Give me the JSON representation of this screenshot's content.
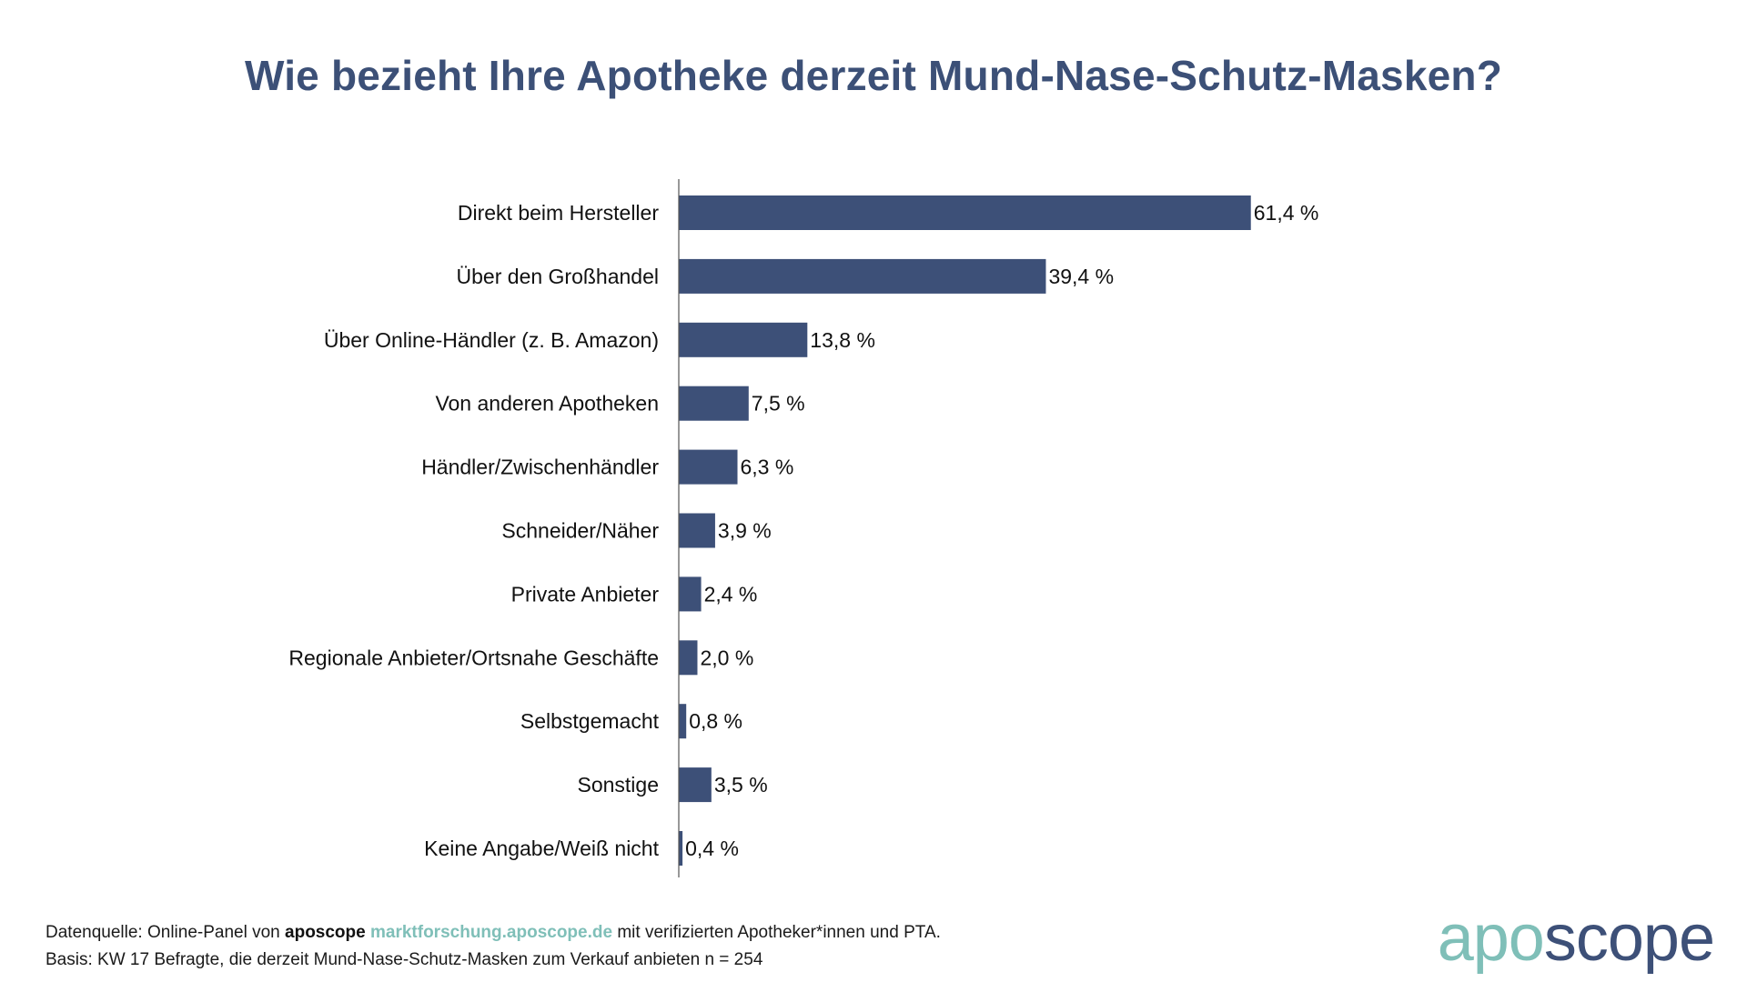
{
  "colors": {
    "bar": "#3d5078",
    "title": "#3c5077",
    "accent_teal": "#7fbfb8",
    "logo_dark": "#3d5078",
    "axis": "#555555",
    "text": "#111111"
  },
  "chart_data": {
    "type": "bar",
    "orientation": "horizontal",
    "title": "Wie bezieht Ihre Apotheke derzeit Mund-Nase-Schutz-Masken?",
    "categories": [
      "Direkt beim Hersteller",
      "Über den Großhandel",
      "Über Online-Händler (z. B. Amazon)",
      "Von anderen Apotheken",
      "Händler/Zwischenhändler",
      "Schneider/Näher",
      "Private Anbieter",
      "Regionale Anbieter/Ortsnahe Geschäfte",
      "Selbstgemacht",
      "Sonstige",
      "Keine Angabe/Weiß nicht"
    ],
    "values": [
      61.4,
      39.4,
      13.8,
      7.5,
      6.3,
      3.9,
      2.4,
      2.0,
      0.8,
      3.5,
      0.4
    ],
    "value_labels": [
      "61,4 %",
      "39,4 %",
      "13,8 %",
      "7,5 %",
      "6,3 %",
      "3,9 %",
      "2,4 %",
      "2,0 %",
      "0,8 %",
      "3,5 %",
      "0,4 %"
    ],
    "xlabel": "",
    "ylabel": "",
    "xlim": [
      0,
      100
    ],
    "grid": false
  },
  "footer": {
    "source_prefix": "Datenquelle: Online-Panel von ",
    "source_brand": "aposcope",
    "source_url": "marktforschung.aposcope.de",
    "source_suffix": " mit verifizierten Apotheker*innen und PTA.",
    "basis": "Basis: KW 17 Befragte, die derzeit Mund-Nase-Schutz-Masken zum Verkauf anbieten n = 254"
  },
  "logo": {
    "part1": "apo",
    "part2": "scope"
  }
}
